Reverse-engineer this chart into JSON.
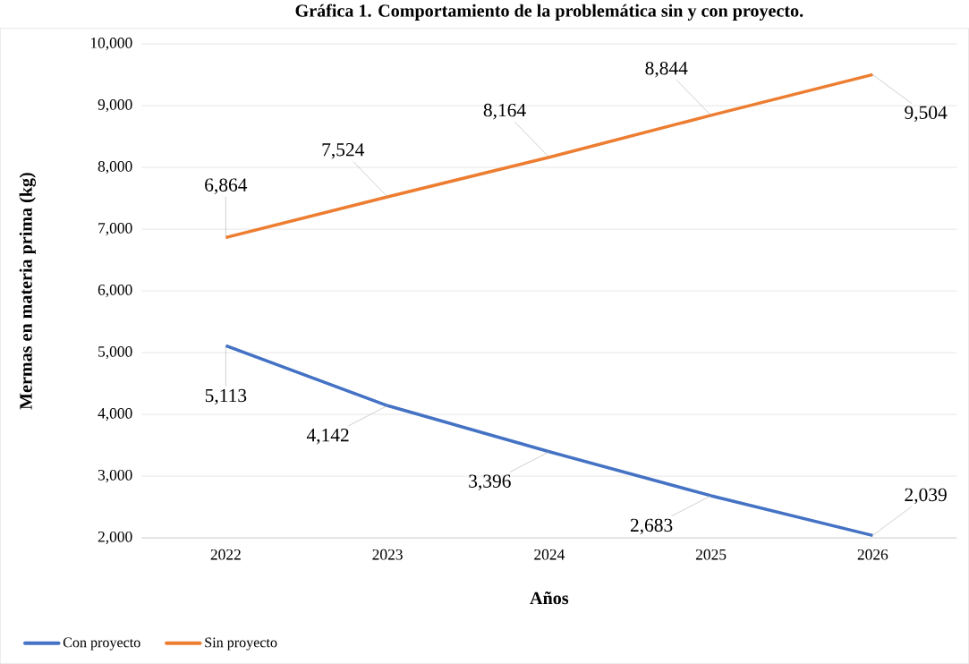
{
  "chart_data": {
    "type": "line",
    "title": "Gráfica 1. Comportamiento de la problemática sin y con proyecto.",
    "xlabel": "Años",
    "ylabel": "Mermas en materia prima (kg)",
    "categories": [
      "2022",
      "2023",
      "2024",
      "2025",
      "2026"
    ],
    "series": [
      {
        "name": "Con proyecto",
        "color": "#4472c4",
        "values": [
          5113,
          4142,
          3396,
          2683,
          2039
        ],
        "value_labels": [
          "5,113",
          "4,142",
          "3,396",
          "2,683",
          "2,039"
        ]
      },
      {
        "name": "Sin proyecto",
        "color": "#ed7d31",
        "values": [
          6864,
          7524,
          8164,
          8844,
          9504
        ],
        "value_labels": [
          "6,864",
          "7,524",
          "8,164",
          "8,844",
          "9,504"
        ]
      }
    ],
    "ylim": [
      2000,
      10000
    ],
    "yticks": [
      {
        "value": 2000,
        "label": "2,000"
      },
      {
        "value": 3000,
        "label": "3,000"
      },
      {
        "value": 4000,
        "label": "4,000"
      },
      {
        "value": 5000,
        "label": "5,000"
      },
      {
        "value": 6000,
        "label": "6,000"
      },
      {
        "value": 7000,
        "label": "7,000"
      },
      {
        "value": 8000,
        "label": "8,000"
      },
      {
        "value": 9000,
        "label": "9,000"
      },
      {
        "value": 10000,
        "label": "10,000"
      }
    ],
    "grid": "y",
    "legend": "bottom left",
    "marker": "none",
    "line_style": "solid"
  }
}
